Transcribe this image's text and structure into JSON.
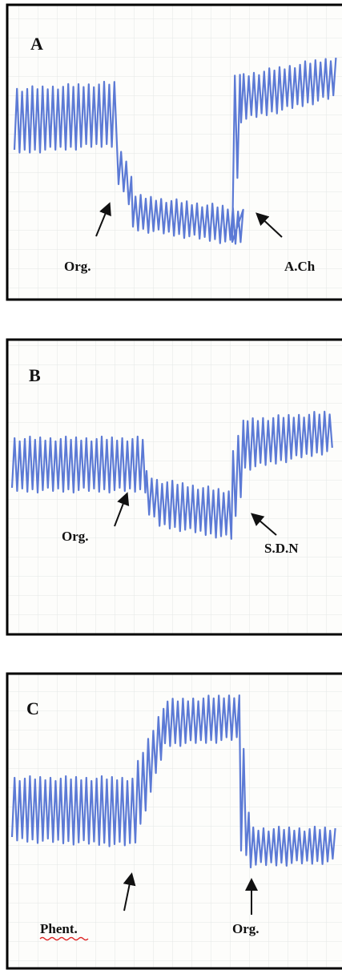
{
  "panels": [
    {
      "letter": "A",
      "labels": [
        "Org.",
        "A.Ch"
      ]
    },
    {
      "letter": "B",
      "labels": [
        "Org.",
        "S.D.N"
      ]
    },
    {
      "letter": "C",
      "labels": [
        "Phent.",
        "Org."
      ]
    }
  ]
}
